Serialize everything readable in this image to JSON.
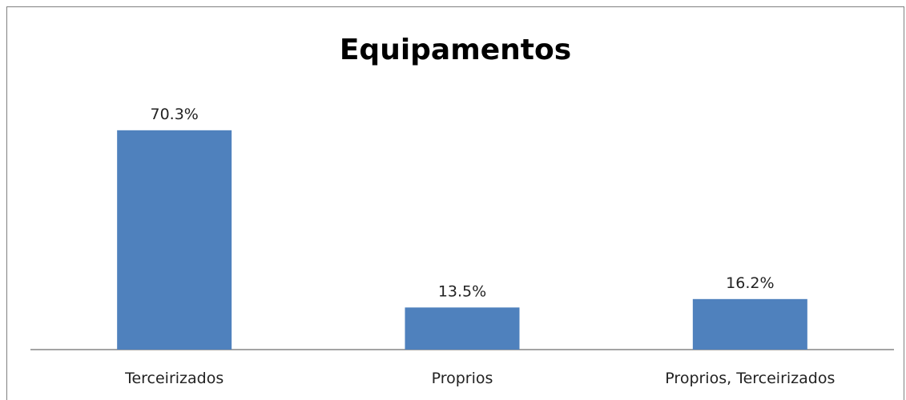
{
  "chart_data": {
    "type": "bar",
    "title": "Equipamentos",
    "categories": [
      "Terceirizados",
      "Proprios",
      "Proprios, Terceirizados"
    ],
    "values": [
      70.3,
      13.5,
      16.2
    ],
    "value_labels": [
      "70.3%",
      "13.5%",
      "16.2%"
    ],
    "unit": "%",
    "ylim": [
      0,
      80
    ],
    "bar_color": "#4f81bd",
    "axis_color": "#868686",
    "grid": false,
    "legend": "none"
  }
}
